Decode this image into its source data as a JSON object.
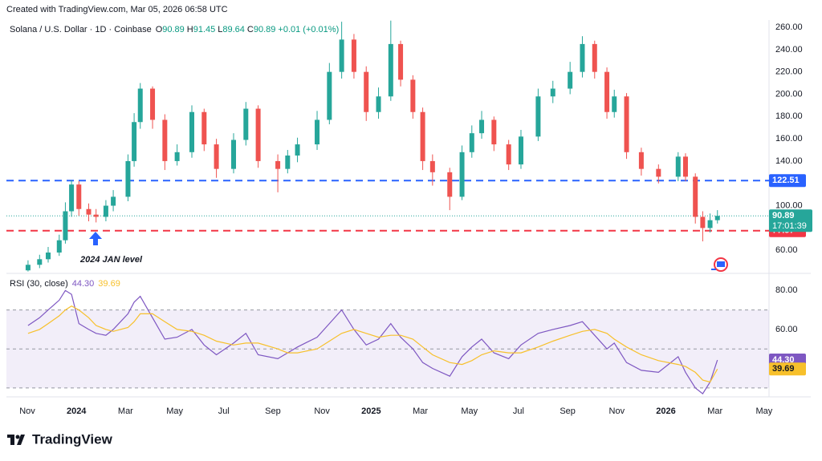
{
  "watermark": "Created with TradingView.com, Mar 05, 2026 06:58 UTC",
  "brand": "TradingView",
  "chart_data": [
    {
      "type": "candlestick",
      "symbol": "Solana / U.S. Dollar · 1D · Coinbase",
      "ohlc": [
        {
          "label": "O",
          "value": "90.89"
        },
        {
          "label": "H",
          "value": "91.45"
        },
        {
          "label": "L",
          "value": "89.64"
        },
        {
          "label": "C",
          "value": "90.89"
        }
      ],
      "change": "+0.01 (+0.01%)",
      "up_color": "#26a69a",
      "down_color": "#ef5350",
      "x": [
        0.03,
        0.5,
        0.85,
        1.3,
        1.55,
        1.8,
        2.1,
        2.5,
        2.8,
        3.2,
        3.5,
        4.1,
        4.35,
        4.6,
        5.1,
        5.6,
        6.1,
        6.7,
        7.2,
        7.7,
        8.4,
        8.9,
        9.4,
        10.2,
        10.6,
        11,
        11.8,
        12.3,
        12.8,
        13.3,
        13.8,
        14.3,
        14.8,
        15.2,
        15.7,
        16.1,
        16.5,
        17.2,
        17.7,
        18.1,
        18.5,
        19,
        19.6,
        20.1,
        20.8,
        21.4,
        22.1,
        22.6,
        23.1,
        23.6,
        23.9,
        24.4,
        25,
        25.7,
        26.5,
        26.8,
        27.2,
        27.5,
        27.8,
        28.1
      ],
      "open": [
        42,
        47,
        52,
        58,
        69,
        95,
        119,
        97,
        92,
        90,
        100,
        108,
        140,
        175,
        205,
        177,
        140,
        148,
        184,
        155,
        133,
        159,
        187,
        140,
        133,
        145,
        155,
        177,
        220,
        249,
        220,
        184,
        198,
        245,
        213,
        184,
        140,
        130,
        108,
        148,
        165,
        177,
        155,
        137,
        162,
        198,
        205,
        220,
        245,
        220,
        184,
        198,
        148,
        133,
        126,
        144,
        126,
        90,
        80,
        87
      ],
      "high": [
        51,
        56,
        63,
        74,
        103,
        123,
        122,
        102,
        97,
        105,
        114,
        146,
        183,
        210,
        207,
        182,
        155,
        190,
        187,
        160,
        165,
        193,
        190,
        146,
        150,
        161,
        185,
        228,
        265,
        254,
        225,
        206,
        266,
        248,
        217,
        188,
        146,
        134,
        154,
        172,
        185,
        180,
        159,
        168,
        205,
        212,
        229,
        252,
        248,
        224,
        204,
        201,
        152,
        137,
        148,
        147,
        129,
        95,
        93,
        96
      ],
      "low": [
        41,
        44,
        49,
        55,
        66,
        90,
        91,
        86,
        85,
        86,
        95,
        104,
        135,
        169,
        169,
        132,
        136,
        143,
        149,
        125,
        129,
        154,
        134,
        112,
        129,
        139,
        150,
        173,
        214,
        214,
        176,
        178,
        194,
        207,
        178,
        132,
        118,
        96,
        105,
        143,
        160,
        149,
        132,
        133,
        158,
        192,
        200,
        215,
        214,
        178,
        179,
        142,
        127,
        120,
        122,
        122,
        84,
        68,
        76,
        84
      ],
      "close": [
        47,
        52,
        58,
        69,
        95,
        119,
        97,
        92,
        90,
        100,
        108,
        140,
        175,
        205,
        177,
        140,
        148,
        184,
        155,
        133,
        159,
        187,
        140,
        133,
        145,
        155,
        177,
        220,
        249,
        220,
        184,
        198,
        245,
        213,
        184,
        140,
        130,
        108,
        148,
        165,
        177,
        155,
        137,
        162,
        198,
        205,
        220,
        245,
        220,
        184,
        198,
        148,
        133,
        126,
        144,
        126,
        90,
        80,
        87,
        90.89
      ],
      "countdown": "17:01:39",
      "hlines": [
        {
          "value": 122.51,
          "color": "#2962ff"
        },
        {
          "value": 77.57,
          "color": "#f23645"
        }
      ],
      "annotation": "2024 JAN level",
      "xlim": [
        -0.85,
        30.2
      ],
      "xticks": [
        {
          "value": 0,
          "label": "Nov"
        },
        {
          "value": 2,
          "label": "2024"
        },
        {
          "value": 4,
          "label": "Mar"
        },
        {
          "value": 6,
          "label": "May"
        },
        {
          "value": 8,
          "label": "Jul"
        },
        {
          "value": 10,
          "label": "Sep"
        },
        {
          "value": 12,
          "label": "Nov"
        },
        {
          "value": 14,
          "label": "2025"
        },
        {
          "value": 16,
          "label": "Mar"
        },
        {
          "value": 18,
          "label": "May"
        },
        {
          "value": 20,
          "label": "Jul"
        },
        {
          "value": 22,
          "label": "Sep"
        },
        {
          "value": 24,
          "label": "Nov"
        },
        {
          "value": 26,
          "label": "2026"
        },
        {
          "value": 28,
          "label": "Mar"
        },
        {
          "value": 30,
          "label": "May"
        }
      ],
      "ylim": [
        40,
        266.5
      ],
      "yticks": [
        {
          "value": 60,
          "label": "60.00"
        },
        {
          "value": 100,
          "label": "100.00"
        },
        {
          "value": 140,
          "label": "140.00"
        },
        {
          "value": 160,
          "label": "160.00"
        },
        {
          "value": 180,
          "label": "180.00"
        },
        {
          "value": 200,
          "label": "200.00"
        },
        {
          "value": 220,
          "label": "220.00"
        },
        {
          "value": 240,
          "label": "240.00"
        },
        {
          "value": 260,
          "label": "260.00"
        }
      ]
    },
    {
      "type": "line",
      "title": "RSI (30, close)",
      "series": [
        {
          "name": "RSI",
          "color": "#7e57c2",
          "last_label": "44.30",
          "values": [
            62,
            66,
            70,
            75,
            80,
            78,
            63,
            60,
            58,
            57,
            60,
            68,
            74,
            77,
            66,
            55,
            56,
            60,
            52,
            47,
            53,
            58,
            47,
            45,
            48,
            51,
            56,
            63,
            70,
            60,
            52,
            55,
            63,
            56,
            50,
            43,
            40,
            36,
            46,
            51,
            55,
            48,
            45,
            52,
            58,
            60,
            62,
            64,
            57,
            50,
            53,
            43,
            39,
            38,
            46,
            38,
            30,
            27,
            33,
            44.3
          ]
        },
        {
          "name": "RSI MA",
          "color": "#f7c02b",
          "last_label": "39.69",
          "values": [
            58,
            60,
            63,
            67,
            70,
            72,
            70,
            66,
            62,
            60,
            59,
            61,
            64,
            68,
            68,
            64,
            60,
            59,
            57,
            54,
            52,
            53,
            53,
            50,
            48,
            48,
            50,
            54,
            58,
            60,
            58,
            56,
            57,
            57,
            55,
            51,
            47,
            43,
            42,
            44,
            47,
            49,
            48,
            48,
            51,
            54,
            57,
            59,
            60,
            58,
            55,
            51,
            47,
            44,
            42,
            41,
            38,
            34,
            33,
            39.69
          ]
        }
      ],
      "levels": [
        70,
        50,
        30
      ],
      "ylim": [
        25.4,
        88.75
      ],
      "yticks": [
        {
          "value": 60,
          "label": "60.00"
        },
        {
          "value": 80,
          "label": "80.00"
        }
      ]
    }
  ]
}
